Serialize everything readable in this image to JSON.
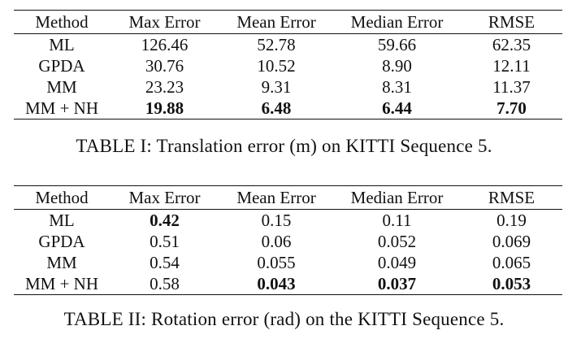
{
  "table1": {
    "headers": [
      "Method",
      "Max Error",
      "Mean Error",
      "Median Error",
      "RMSE"
    ],
    "rows": [
      [
        "ML",
        "126.46",
        "52.78",
        "59.66",
        "62.35"
      ],
      [
        "GPDA",
        "30.76",
        "10.52",
        "8.90",
        "12.11"
      ],
      [
        "MM",
        "23.23",
        "9.31",
        "8.31",
        "11.37"
      ],
      [
        "MM + NH",
        "19.88",
        "6.48",
        "6.44",
        "7.70"
      ]
    ],
    "bold_cells": [
      [
        3,
        1
      ],
      [
        3,
        2
      ],
      [
        3,
        3
      ],
      [
        3,
        4
      ]
    ],
    "caption": "TABLE I: Translation error (m) on KITTI Sequence 5."
  },
  "table2": {
    "headers": [
      "Method",
      "Max Error",
      "Mean Error",
      "Median Error",
      "RMSE"
    ],
    "rows": [
      [
        "ML",
        "0.42",
        "0.15",
        "0.11",
        "0.19"
      ],
      [
        "GPDA",
        "0.51",
        "0.06",
        "0.052",
        "0.069"
      ],
      [
        "MM",
        "0.54",
        "0.055",
        "0.049",
        "0.065"
      ],
      [
        "MM + NH",
        "0.58",
        "0.043",
        "0.037",
        "0.053"
      ]
    ],
    "bold_cells": [
      [
        0,
        1
      ],
      [
        3,
        2
      ],
      [
        3,
        3
      ],
      [
        3,
        4
      ]
    ],
    "caption": "TABLE II: Rotation error (rad) on the KITTI Sequence 5."
  }
}
